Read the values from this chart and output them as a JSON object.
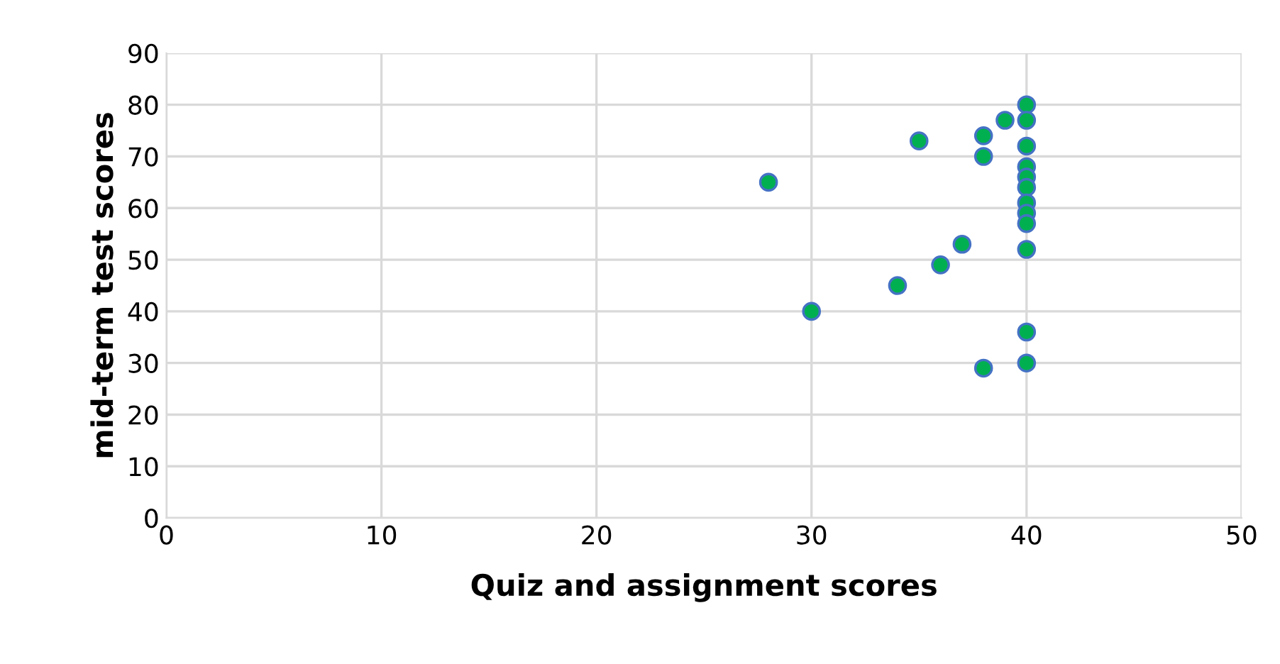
{
  "chart_data": {
    "type": "scatter",
    "xlabel": "Quiz and assignment scores",
    "ylabel": "mid-term test scores",
    "x": [
      28,
      30,
      34,
      35,
      36,
      37,
      38,
      38,
      38,
      39,
      40,
      40,
      40,
      40,
      40,
      40,
      40,
      40,
      40,
      40,
      40,
      40
    ],
    "values": [
      65,
      40,
      45,
      73,
      49,
      53,
      74,
      70,
      29,
      77,
      80,
      77,
      72,
      68,
      66,
      64,
      61,
      59,
      57,
      52,
      36,
      30
    ],
    "color": "#00b050",
    "marker": "circle",
    "xlim": [
      0,
      50
    ],
    "xticks": [
      0,
      10,
      20,
      30,
      40,
      50
    ],
    "ylim": [
      0,
      90
    ],
    "yticks": [
      0,
      10,
      20,
      30,
      40,
      50,
      60,
      70,
      80,
      90
    ],
    "grid": true
  }
}
